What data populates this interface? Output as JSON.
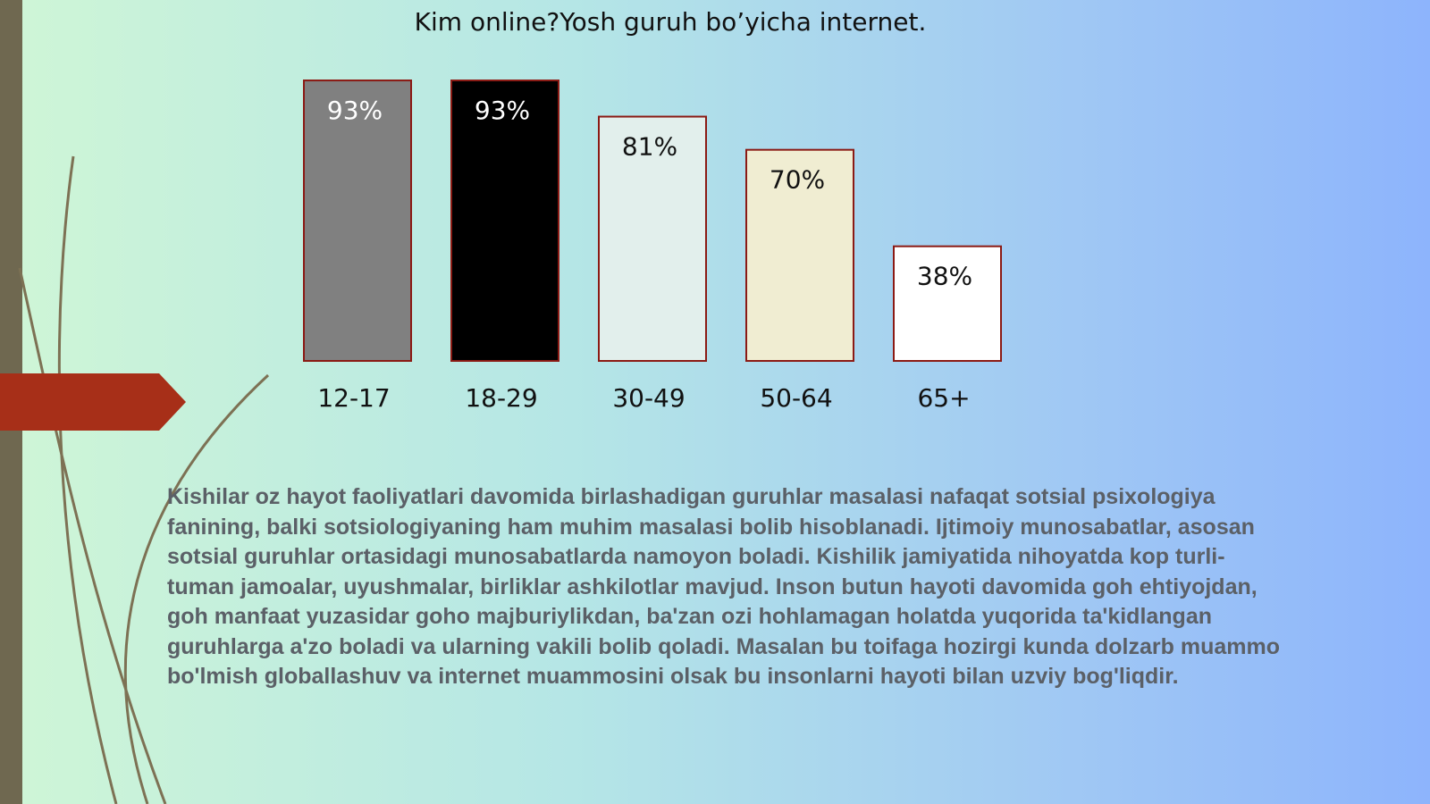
{
  "chart_data": {
    "type": "bar",
    "title": "Kim online?Yosh guruh bo’yicha internet.",
    "categories": [
      "12-17",
      "18-29",
      "30-49",
      "50-64",
      "65+"
    ],
    "values": [
      93,
      93,
      81,
      70,
      38
    ],
    "value_labels": [
      "93%",
      "93%",
      "81%",
      "70%",
      "38%"
    ],
    "colors": [
      "#808080",
      "#000000",
      "#e2efec",
      "#f0edd2",
      "#ffffff"
    ]
  },
  "paragraph": "Kishilar oz hayot faoliyatlari davomida birlashadigan guruhlar masalasi nafaqat sotsial psixologiya fanining, balki sotsiologiyaning ham muhim masalasi bolib hisoblanadi. Ijtimoiy munosabatlar, asosan sotsial guruhlar ortasidagi munosabatlarda namoyon boladi. Kishilik jamiyatida nihoyatda kop turli-tuman jamoalar, uyushmalar, birliklar ashkilotlar mavjud. Inson butun hayoti davomida goh ehtiyojdan, goh manfaat yuzasidar goho majburiylikdan, ba'zan ozi hohlamagan holatda yuqorida ta'kidlangan guruhlarga a'zo boladi va ularning vakili bolib qoladi. Masalan bu toifaga hozirgi kunda dolzarb muammo bo'lmish globallashuv va internet muammosini olsak bu insonlarni hayoti bilan uzviy bog'liqdir."
}
